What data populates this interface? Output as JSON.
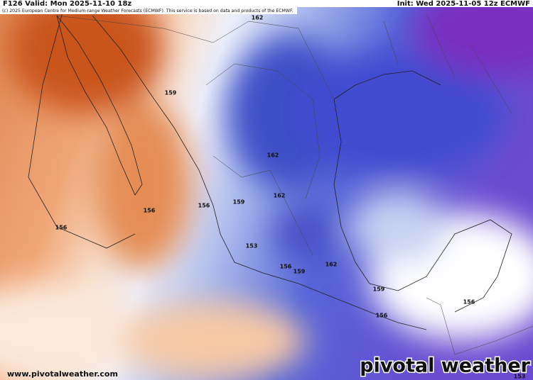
{
  "header": {
    "valid": "F126 Valid: Mon 2025-11-10 18z",
    "init": "Init: Wed 2025-11-05 12z ECMWF",
    "credit": "(c) 2025 European Centre for Medium-range Weather Forecasts (ECMWF). This service is based on data and products of the ECMWF."
  },
  "contour_labels": [
    162,
    159,
    162,
    162,
    159,
    156,
    156,
    156,
    153,
    162,
    156,
    159,
    159,
    156,
    156,
    153
  ],
  "footer": {
    "url": "www.pivotalweather.com",
    "logo": "pivotal weather"
  }
}
